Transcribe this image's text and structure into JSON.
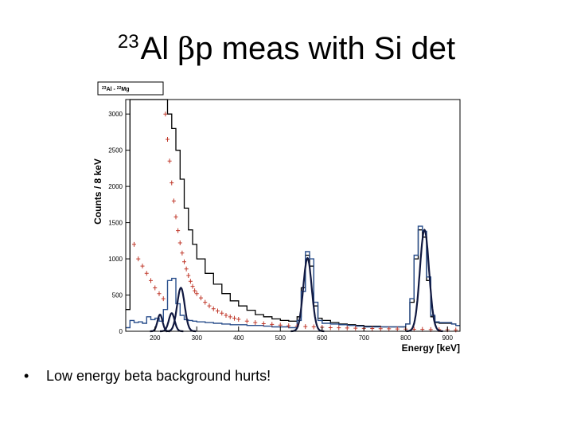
{
  "slide": {
    "title_sup": "23",
    "title_main": "Al",
    "title_beta": "β",
    "title_rest": "p meas with Si det",
    "bullet": "Low energy beta background hurts!"
  },
  "chart_data": {
    "type": "histogram",
    "legend": {
      "parts": [
        "23",
        "Al - ",
        "22",
        "Mg"
      ]
    },
    "xlabel": "Energy [keV]",
    "ylabel": "Counts / 8 keV",
    "xlim": [
      130,
      930
    ],
    "ylim": [
      0,
      3200
    ],
    "xticks": [
      200,
      300,
      400,
      500,
      600,
      700,
      800,
      900
    ],
    "yticks": [
      0,
      500,
      1000,
      1500,
      2000,
      2500,
      3000
    ],
    "colors": {
      "black": "#000000",
      "blue": "#2a4f8c",
      "red": "#c0392b",
      "navy": "#101840"
    },
    "series": [
      {
        "style": "black-histogram",
        "x": [
          130,
          140,
          150,
          160,
          170,
          180,
          190,
          200,
          210,
          220,
          230,
          240,
          250,
          260,
          270,
          280,
          290,
          300,
          320,
          340,
          360,
          380,
          400,
          420,
          440,
          460,
          480,
          500,
          520,
          540,
          550,
          560,
          570,
          580,
          590,
          600,
          620,
          640,
          660,
          680,
          700,
          720,
          740,
          760,
          780,
          800,
          810,
          820,
          830,
          840,
          850,
          860,
          870,
          880,
          890,
          900,
          910,
          920
        ],
        "values": [
          300,
          3200,
          3200,
          3200,
          3200,
          3200,
          3200,
          3200,
          3200,
          3200,
          3000,
          2800,
          2500,
          2100,
          1700,
          1400,
          1200,
          1000,
          800,
          650,
          520,
          420,
          350,
          290,
          230,
          200,
          170,
          150,
          140,
          200,
          600,
          1050,
          900,
          350,
          180,
          150,
          120,
          100,
          90,
          80,
          70,
          70,
          60,
          60,
          60,
          100,
          400,
          1000,
          1400,
          1300,
          700,
          200,
          120,
          110,
          110,
          110,
          100,
          80
        ]
      },
      {
        "style": "blue-histogram",
        "x": [
          130,
          140,
          150,
          160,
          170,
          180,
          190,
          200,
          210,
          220,
          230,
          240,
          250,
          260,
          270,
          280,
          290,
          300,
          320,
          340,
          360,
          380,
          400,
          420,
          440,
          460,
          480,
          500,
          520,
          540,
          550,
          560,
          570,
          580,
          590,
          600,
          620,
          640,
          660,
          680,
          700,
          720,
          740,
          760,
          780,
          800,
          810,
          820,
          830,
          840,
          850,
          860,
          870,
          880,
          890,
          900,
          910,
          920
        ],
        "values": [
          50,
          150,
          120,
          130,
          110,
          200,
          160,
          180,
          140,
          300,
          700,
          730,
          380,
          220,
          160,
          150,
          140,
          130,
          120,
          110,
          100,
          90,
          90,
          80,
          80,
          70,
          60,
          60,
          50,
          150,
          550,
          1100,
          1000,
          400,
          150,
          110,
          100,
          90,
          80,
          70,
          60,
          60,
          60,
          60,
          60,
          100,
          450,
          1050,
          1450,
          1380,
          750,
          220,
          130,
          120,
          120,
          120,
          100,
          80
        ]
      },
      {
        "style": "red-points",
        "x": [
          150,
          160,
          170,
          180,
          190,
          200,
          210,
          220,
          225,
          230,
          235,
          240,
          245,
          250,
          255,
          260,
          265,
          270,
          275,
          280,
          285,
          290,
          295,
          300,
          310,
          320,
          330,
          340,
          350,
          360,
          370,
          380,
          390,
          400,
          420,
          440,
          460,
          480,
          500,
          520,
          540,
          560,
          580,
          600,
          620,
          640,
          660,
          680,
          700,
          720,
          740,
          760,
          780,
          800,
          820,
          840,
          860,
          880,
          900,
          920
        ],
        "values": [
          1200,
          1000,
          900,
          800,
          700,
          600,
          520,
          450,
          3000,
          2650,
          2350,
          2050,
          1800,
          1580,
          1390,
          1220,
          1080,
          960,
          860,
          770,
          690,
          620,
          560,
          520,
          460,
          400,
          350,
          310,
          280,
          250,
          220,
          200,
          180,
          165,
          140,
          120,
          105,
          95,
          85,
          75,
          70,
          65,
          60,
          55,
          50,
          48,
          45,
          42,
          40,
          38,
          36,
          34,
          32,
          30,
          28,
          26,
          24,
          22,
          20,
          18
        ]
      },
      {
        "style": "fit-lines",
        "peaks": [
          {
            "center": 212,
            "sigma": 6,
            "amp": 230
          },
          {
            "center": 240,
            "sigma": 7,
            "amp": 250
          },
          {
            "center": 262,
            "sigma": 9,
            "amp": 600
          },
          {
            "center": 565,
            "sigma": 10,
            "amp": 1010
          },
          {
            "center": 845,
            "sigma": 11,
            "amp": 1400
          }
        ]
      }
    ]
  }
}
